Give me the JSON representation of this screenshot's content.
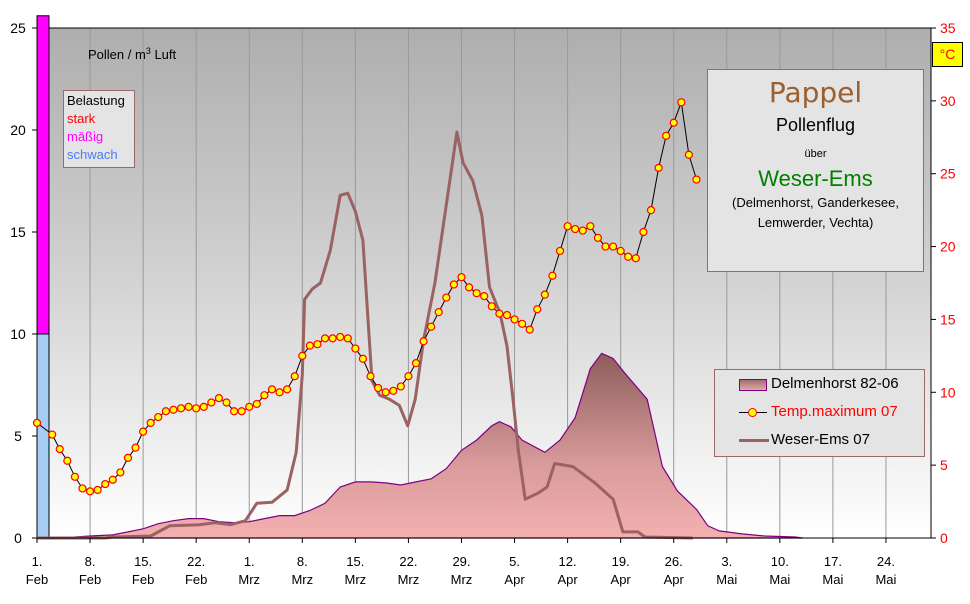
{
  "chart_data": {
    "type": "line",
    "title": "Pappel",
    "subtitle_lines": [
      "Pollenflug",
      "über",
      "Weser-Ems",
      "(Delmenhorst, Ganderkesee,",
      "Lemwerder, Vechta)"
    ],
    "ylabel_left": "Pollen / m³ Luft",
    "ylabel_right": "°C",
    "ylim_left": [
      0,
      25
    ],
    "ylim_right": [
      0,
      35
    ],
    "yticks_left": [
      "0",
      "5",
      "10",
      "15",
      "20",
      "25"
    ],
    "yticks_right": [
      "0",
      "5",
      "10",
      "15",
      "20",
      "25",
      "30",
      "35"
    ],
    "xlim_days": [
      0,
      117
    ],
    "x_ticks": [
      {
        "day": 0,
        "l1": "1.",
        "l2": "Feb"
      },
      {
        "day": 7,
        "l1": "8.",
        "l2": "Feb"
      },
      {
        "day": 14,
        "l1": "15.",
        "l2": "Feb"
      },
      {
        "day": 21,
        "l1": "22.",
        "l2": "Feb"
      },
      {
        "day": 28,
        "l1": "1.",
        "l2": "Mrz"
      },
      {
        "day": 35,
        "l1": "8.",
        "l2": "Mrz"
      },
      {
        "day": 42,
        "l1": "15.",
        "l2": "Mrz"
      },
      {
        "day": 49,
        "l1": "22.",
        "l2": "Mrz"
      },
      {
        "day": 56,
        "l1": "29.",
        "l2": "Mrz"
      },
      {
        "day": 63,
        "l1": "5.",
        "l2": "Apr"
      },
      {
        "day": 70,
        "l1": "12.",
        "l2": "Apr"
      },
      {
        "day": 77,
        "l1": "19.",
        "l2": "Apr"
      },
      {
        "day": 84,
        "l1": "26.",
        "l2": "Apr"
      },
      {
        "day": 91,
        "l1": "3.",
        "l2": "Mai"
      },
      {
        "day": 98,
        "l1": "10.",
        "l2": "Mai"
      },
      {
        "day": 105,
        "l1": "17.",
        "l2": "Mai"
      },
      {
        "day": 112,
        "l1": "24.",
        "l2": "Mai"
      }
    ],
    "belastung": {
      "title": "Belastung",
      "levels": [
        {
          "label": "stark",
          "color": "#ff0000"
        },
        {
          "label": "mäßig",
          "color": "#ff00ff",
          "range": [
            10,
            25.6
          ]
        },
        {
          "label": "schwach",
          "color": "#4a7cff",
          "bar_color": "#a8ccf4",
          "range": [
            0,
            10
          ]
        }
      ]
    },
    "legend": [
      "Delmenhorst 82-06",
      "Temp.maximum 07",
      "Weser-Ems 07"
    ],
    "series": [
      {
        "name": "Delmenhorst 82-06",
        "type": "area",
        "axis": "left",
        "color": "#800080",
        "points": [
          [
            0,
            0
          ],
          [
            4,
            0
          ],
          [
            5,
            0.05
          ],
          [
            7,
            0.1
          ],
          [
            10,
            0.15
          ],
          [
            12,
            0.3
          ],
          [
            14,
            0.45
          ],
          [
            16,
            0.7
          ],
          [
            18,
            0.85
          ],
          [
            20,
            0.95
          ],
          [
            22,
            0.95
          ],
          [
            24,
            0.8
          ],
          [
            26,
            0.75
          ],
          [
            28,
            0.8
          ],
          [
            30,
            0.95
          ],
          [
            32,
            1.1
          ],
          [
            34,
            1.1
          ],
          [
            36,
            1.35
          ],
          [
            38,
            1.7
          ],
          [
            40,
            2.5
          ],
          [
            42,
            2.75
          ],
          [
            44,
            2.75
          ],
          [
            46,
            2.7
          ],
          [
            48,
            2.6
          ],
          [
            50,
            2.75
          ],
          [
            52,
            2.9
          ],
          [
            54,
            3.4
          ],
          [
            56,
            4.3
          ],
          [
            58,
            4.8
          ],
          [
            60,
            5.5
          ],
          [
            61,
            5.7
          ],
          [
            62.5,
            5.45
          ],
          [
            64,
            4.8
          ],
          [
            67,
            4.2
          ],
          [
            69,
            4.8
          ],
          [
            71,
            5.9
          ],
          [
            73,
            8.3
          ],
          [
            74.5,
            9.05
          ],
          [
            76,
            8.8
          ],
          [
            77.5,
            8.1
          ],
          [
            80.5,
            6.8
          ],
          [
            82.5,
            3.5
          ],
          [
            84.5,
            2.3
          ],
          [
            87,
            1.4
          ],
          [
            88.5,
            0.6
          ],
          [
            90,
            0.35
          ],
          [
            93,
            0.2
          ],
          [
            96,
            0.1
          ],
          [
            100,
            0.05
          ],
          [
            101,
            0
          ]
        ]
      },
      {
        "name": "Temp.maximum 07",
        "type": "line",
        "axis": "right",
        "color": "#000000",
        "marker": "#ffff00",
        "values": [
          7.9,
          null,
          7.1,
          6.1,
          5.3,
          4.2,
          3.4,
          3.2,
          3.3,
          3.7,
          4.0,
          4.5,
          5.5,
          6.2,
          7.3,
          7.9,
          8.3,
          8.7,
          8.8,
          8.9,
          9.0,
          8.9,
          9.0,
          9.3,
          9.6,
          9.3,
          8.7,
          8.7,
          9.0,
          9.2,
          9.8,
          10.2,
          10.0,
          10.2,
          11.1,
          12.5,
          13.2,
          13.3,
          13.7,
          13.7,
          13.8,
          13.7,
          13.0,
          12.3,
          11.1,
          10.3,
          10.0,
          10.1,
          10.4,
          11.1,
          12.0,
          13.5,
          14.5,
          15.5,
          16.5,
          17.4,
          17.9,
          17.2,
          16.8,
          16.6,
          15.9,
          15.4,
          15.3,
          15.0,
          14.7,
          14.3,
          15.7,
          16.7,
          18.0,
          19.7,
          21.4,
          21.2,
          21.1,
          21.4,
          20.6,
          20.0,
          20.0,
          19.7,
          19.3,
          19.2,
          21.0,
          22.5,
          25.4,
          27.6,
          28.5,
          29.9,
          26.3,
          24.6
        ]
      },
      {
        "name": "Weser-Ems 07",
        "type": "line",
        "axis": "left",
        "color": "#9a6262",
        "points": [
          [
            0,
            0
          ],
          [
            9,
            0
          ],
          [
            10,
            0.05
          ],
          [
            15,
            0.1
          ],
          [
            17.5,
            0.6
          ],
          [
            21.5,
            0.65
          ],
          [
            23.5,
            0.75
          ],
          [
            25.5,
            0.65
          ],
          [
            27.5,
            0.85
          ],
          [
            29,
            1.7
          ],
          [
            31,
            1.75
          ],
          [
            33,
            2.35
          ],
          [
            34.2,
            4.2
          ],
          [
            35,
            8
          ],
          [
            35.3,
            11.7
          ],
          [
            36.3,
            12.2
          ],
          [
            37.4,
            12.5
          ],
          [
            38.7,
            14.1
          ],
          [
            40,
            16.8
          ],
          [
            41,
            16.9
          ],
          [
            42,
            16
          ],
          [
            43,
            14.6
          ],
          [
            43.5,
            11.7
          ],
          [
            44.2,
            7.7
          ],
          [
            45.2,
            7
          ],
          [
            46.5,
            6.8
          ],
          [
            47.8,
            6.5
          ],
          [
            48.9,
            5.5
          ],
          [
            49.9,
            6.8
          ],
          [
            51,
            9.7
          ],
          [
            52.5,
            12.5
          ],
          [
            54.1,
            16.6
          ],
          [
            55.4,
            19.9
          ],
          [
            56.2,
            18.4
          ],
          [
            57.5,
            17.5
          ],
          [
            58.7,
            15.8
          ],
          [
            59.7,
            12.3
          ],
          [
            61.1,
            11
          ],
          [
            62,
            9.4
          ],
          [
            62.8,
            6.8
          ],
          [
            63.5,
            4.3
          ],
          [
            64.4,
            1.9
          ],
          [
            66.1,
            2.2
          ],
          [
            67.3,
            2.5
          ],
          [
            68.3,
            3.65
          ],
          [
            70.7,
            3.5
          ],
          [
            73.6,
            2.7
          ],
          [
            76,
            1.9
          ],
          [
            77.3,
            0.3
          ],
          [
            79.3,
            0.3
          ],
          [
            80.2,
            0.05
          ],
          [
            86.5,
            0
          ]
        ]
      }
    ]
  }
}
